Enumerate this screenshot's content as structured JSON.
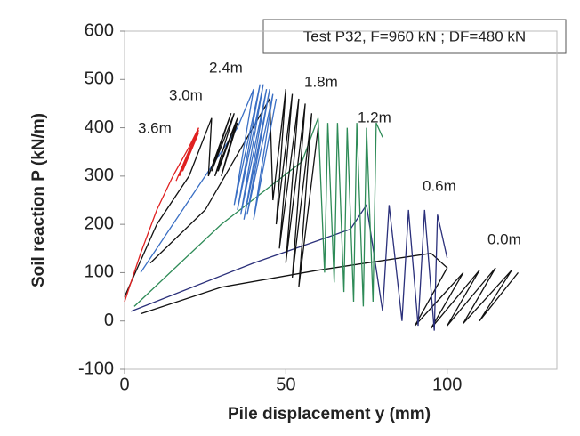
{
  "chart_data": {
    "type": "line",
    "annotation": "Test P32, F=960 kN ; DF=480 kN",
    "x_label": "Pile displacement y (mm)",
    "y_label": "Soil reaction P (kN/m)",
    "xlim": [
      0,
      134
    ],
    "ylim": [
      -100,
      600
    ],
    "xticks": [
      0,
      50,
      100
    ],
    "yticks": [
      -100,
      0,
      100,
      200,
      300,
      400,
      500,
      600
    ],
    "grid": false,
    "series": [
      {
        "name": "0.0m",
        "color": "#111111",
        "x": [
          5,
          30,
          60,
          95,
          100,
          90,
          105,
          95,
          110,
          100,
          115,
          105,
          120,
          110,
          122
        ],
        "values": [
          15,
          70,
          105,
          140,
          110,
          -10,
          100,
          -15,
          105,
          -10,
          110,
          -5,
          105,
          0,
          100
        ]
      },
      {
        "name": "0.6m",
        "color": "#2a2f7a",
        "x": [
          2,
          40,
          70,
          75,
          80,
          82,
          86,
          88,
          91,
          93,
          96,
          97,
          100
        ],
        "values": [
          20,
          120,
          190,
          240,
          20,
          240,
          0,
          230,
          -10,
          230,
          -20,
          220,
          130
        ]
      },
      {
        "name": "1.2m",
        "color": "#2e8b57",
        "x": [
          3,
          30,
          55,
          60,
          62,
          63,
          65,
          66,
          68,
          69,
          71,
          72,
          74,
          75,
          77,
          78,
          80
        ],
        "values": [
          30,
          200,
          330,
          420,
          100,
          410,
          80,
          410,
          60,
          400,
          40,
          410,
          30,
          400,
          40,
          410,
          380
        ]
      },
      {
        "name": "1.8m",
        "color": "#111111",
        "x": [
          8,
          25,
          45,
          46,
          50,
          47,
          52,
          48,
          54,
          50,
          56,
          52,
          58,
          54,
          60
        ],
        "values": [
          120,
          230,
          460,
          250,
          480,
          200,
          470,
          150,
          460,
          120,
          450,
          90,
          430,
          70,
          400
        ]
      },
      {
        "name": "2.4m",
        "color": "#3a6fc4",
        "x": [
          5,
          20,
          35,
          40,
          34,
          42,
          35,
          43,
          36,
          44,
          37,
          45,
          38,
          46,
          40,
          47
        ],
        "values": [
          100,
          250,
          400,
          480,
          240,
          490,
          230,
          490,
          220,
          480,
          210,
          480,
          220,
          470,
          210,
          460
        ]
      },
      {
        "name": "3.0m",
        "color": "#111111",
        "x": [
          0,
          10,
          20,
          27,
          26,
          33,
          27,
          34,
          28,
          35,
          29,
          35,
          30,
          35
        ],
        "values": [
          50,
          200,
          300,
          420,
          300,
          430,
          310,
          430,
          300,
          420,
          310,
          420,
          300,
          410
        ]
      },
      {
        "name": "3.6m",
        "color": "#e02020",
        "x": [
          0,
          5,
          10,
          15,
          20,
          23,
          16,
          23,
          17,
          23,
          18,
          23
        ],
        "values": [
          40,
          140,
          230,
          300,
          360,
          400,
          290,
          400,
          300,
          395,
          310,
          390
        ]
      }
    ]
  }
}
